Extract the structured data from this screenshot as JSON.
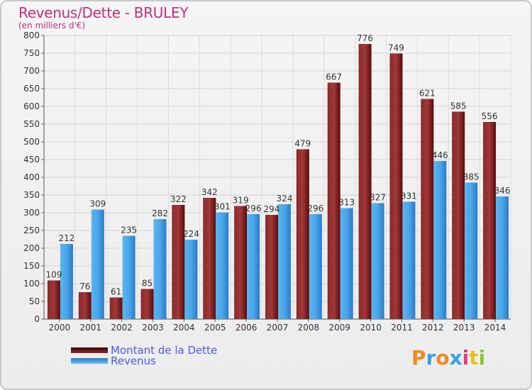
{
  "title": "Revenus/Dette - BRULEY",
  "subtitle": "(en milliers d'€)",
  "brand": {
    "letters": [
      "P",
      "r",
      "o",
      "x",
      "i",
      "t",
      "i"
    ],
    "colors": [
      "#f08a1c",
      "#3aa0e8",
      "#f08a1c",
      "#3aa0e8",
      "#e23a8a",
      "#e8c21c",
      "#8bc540"
    ]
  },
  "legend": {
    "items": [
      {
        "label": "Montant de la Dette",
        "color": "#6b0f0f"
      },
      {
        "label": "Revenus",
        "color": "#3a9ae2"
      }
    ]
  },
  "chart_data": {
    "type": "bar",
    "categories": [
      "2000",
      "2001",
      "2002",
      "2003",
      "2004",
      "2005",
      "2006",
      "2007",
      "2008",
      "2009",
      "2010",
      "2011",
      "2012",
      "2013",
      "2014"
    ],
    "series": [
      {
        "name": "Montant de la Dette",
        "color": "#7a1515",
        "values": [
          109,
          76,
          61,
          85,
          322,
          342,
          319,
          294,
          479,
          667,
          776,
          749,
          621,
          585,
          556
        ]
      },
      {
        "name": "Revenus",
        "color": "#3a9ae2",
        "values": [
          212,
          309,
          235,
          282,
          224,
          301,
          296,
          324,
          296,
          313,
          327,
          331,
          446,
          385,
          346
        ]
      }
    ],
    "ylim": [
      0,
      800
    ],
    "yticks": [
      0,
      50,
      100,
      150,
      200,
      250,
      300,
      350,
      400,
      450,
      500,
      550,
      600,
      650,
      700,
      750,
      800
    ],
    "grid": true,
    "legend_position": "bottom-left"
  }
}
